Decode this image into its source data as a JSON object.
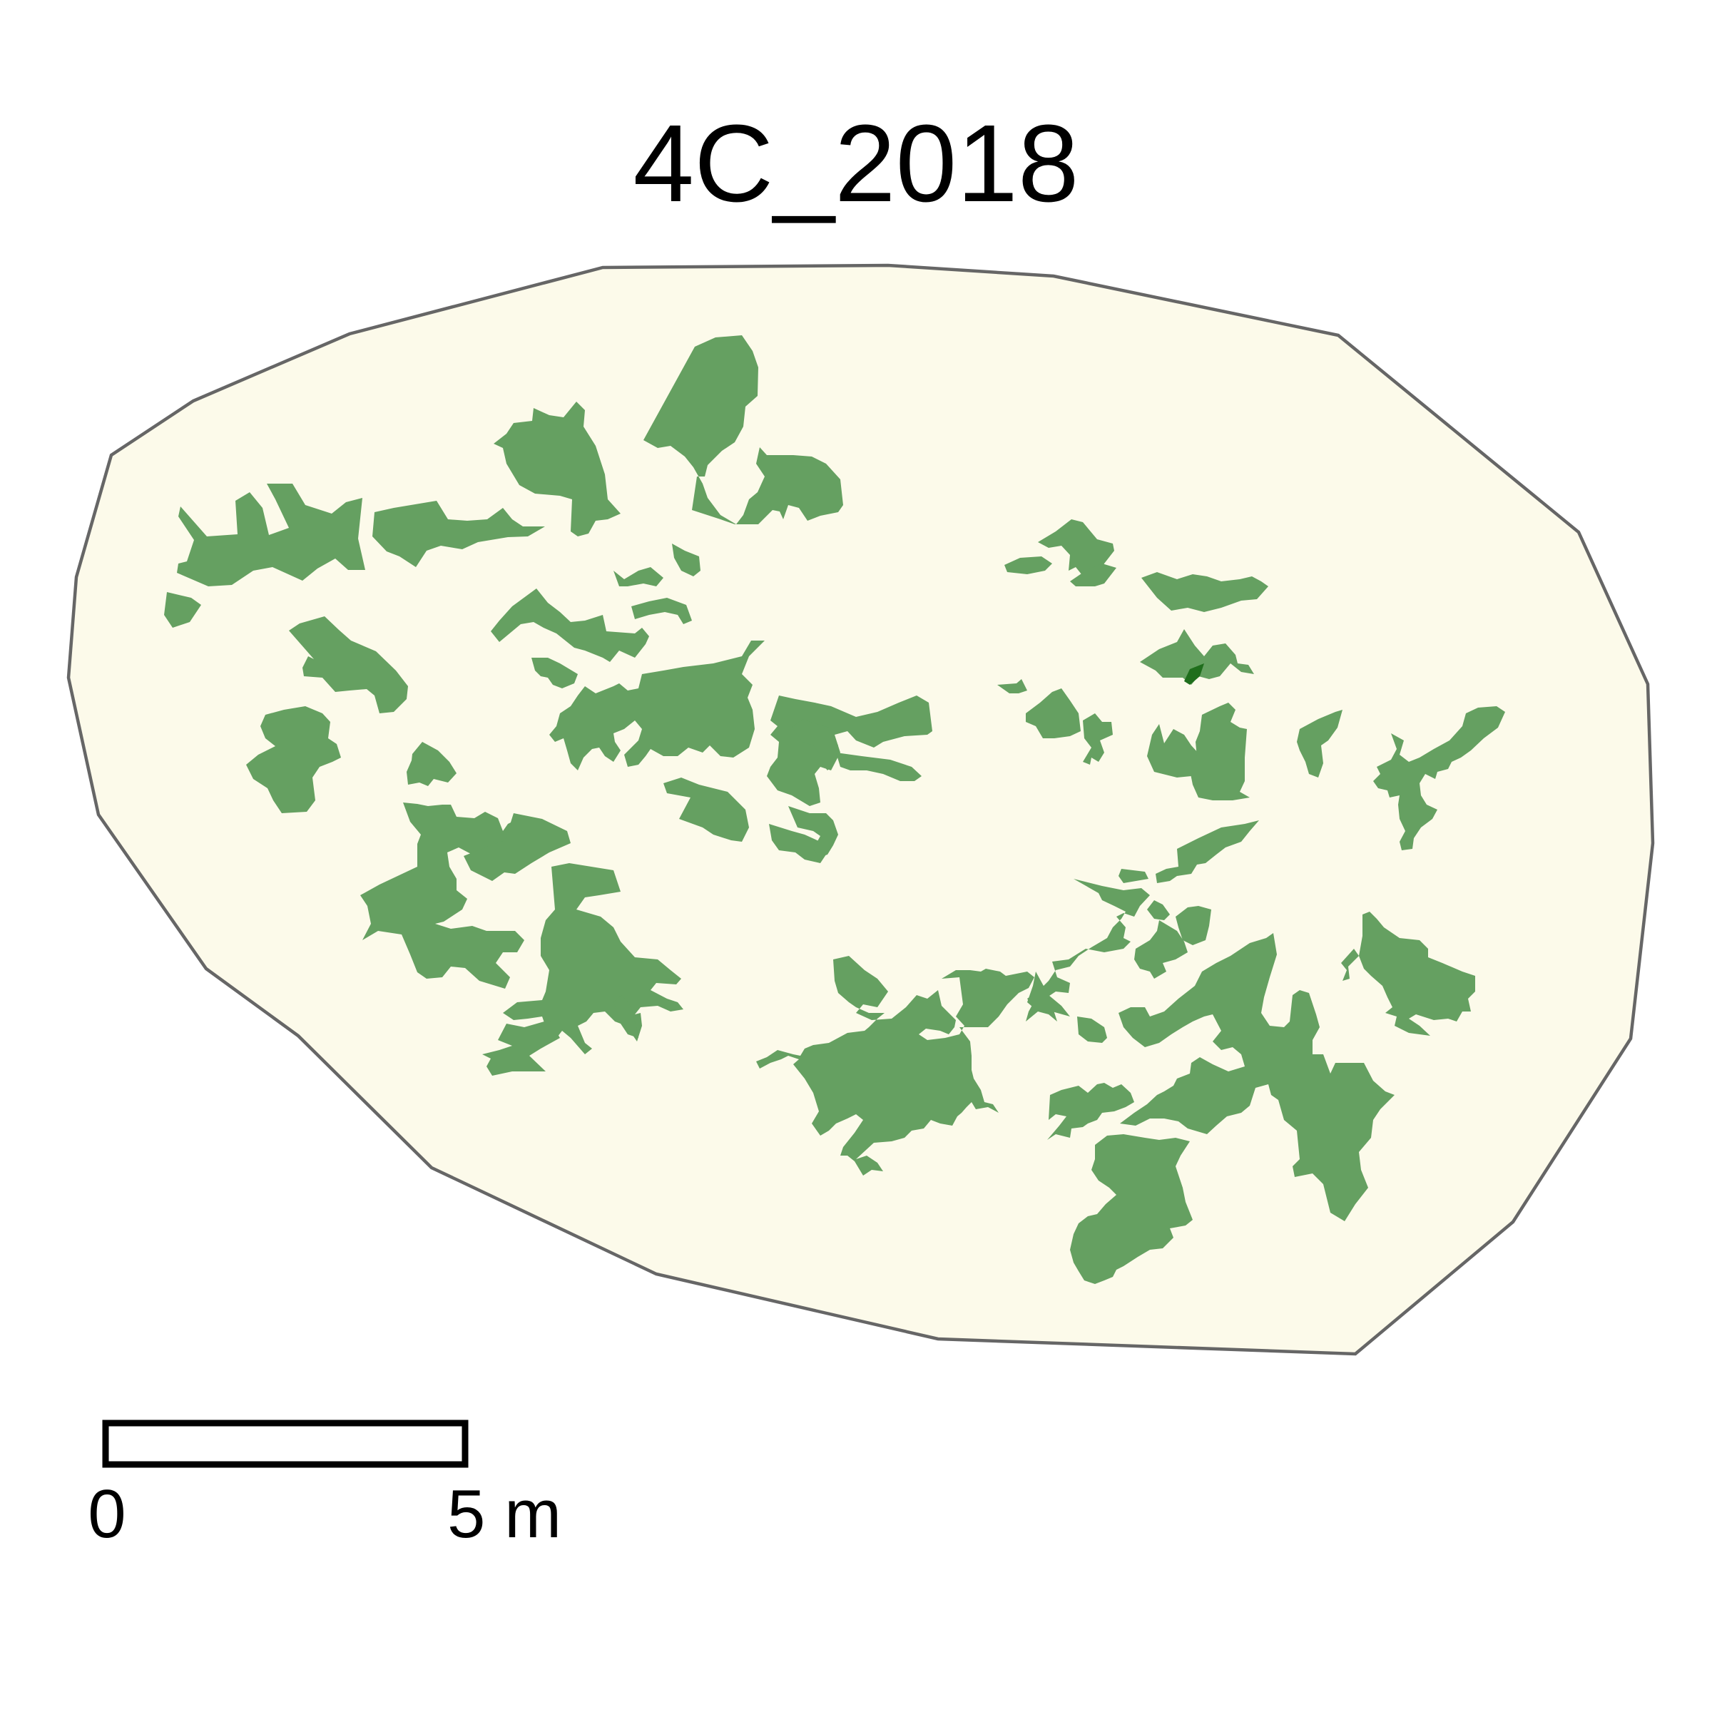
{
  "title": "4C_2018",
  "scale_bar": {
    "start_label": "0",
    "end_label": "5 m",
    "length_m": 5
  },
  "colors": {
    "plot_fill": "#fcfaea",
    "plot_outline": "#666666",
    "canopy": "#65a061",
    "canopy_overlap": "#1f6e1c",
    "scale_bar_stroke": "#000000"
  },
  "legend": [],
  "layers": [
    "plot-boundary",
    "tree-canopy"
  ]
}
